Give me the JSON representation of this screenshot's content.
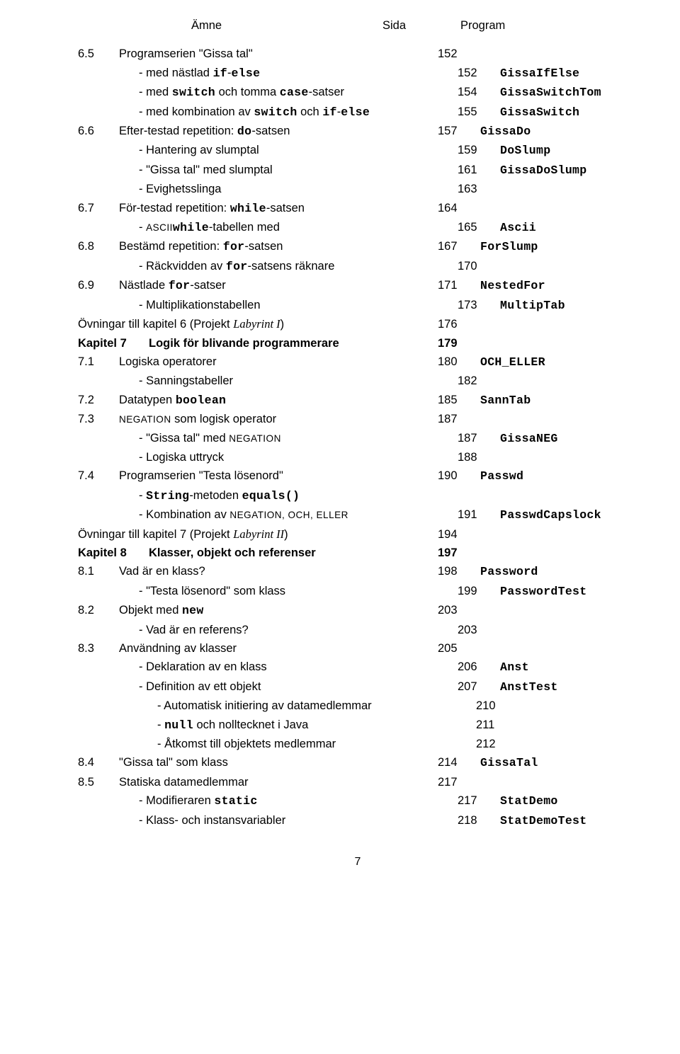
{
  "header": {
    "col1": "Ämne",
    "col2": "Sida",
    "col3": "Program"
  },
  "rows": [
    {
      "num": "6.5",
      "text": "Programserien \"Gissa tal\"",
      "page": "152",
      "prog": ""
    },
    {
      "num": "",
      "sub": 1,
      "pre": "- med nästlad ",
      "mono": "if",
      "mid": "-",
      "mono2": "else",
      "page": "152",
      "progMono": "GissaIfElse"
    },
    {
      "num": "",
      "sub": 1,
      "pre": "- med ",
      "mono": "switch",
      "mid": " och tomma ",
      "mono2": "case",
      "post": "-satser",
      "page": "154",
      "progMono": "GissaSwitchTom"
    },
    {
      "num": "",
      "sub": 1,
      "pre": "- med kombination av ",
      "mono": "switch",
      "mid": " och ",
      "mono2": "if",
      "mid2": "-",
      "mono3": "else",
      "page": "155",
      "progMono": "GissaSwitch"
    },
    {
      "num": "6.6",
      "pre": "Efter-testad repetition: ",
      "mono": "do",
      "post": "-satsen",
      "page": "157",
      "progMono": "GissaDo"
    },
    {
      "num": "",
      "sub": 1,
      "text": "- Hantering av slumptal",
      "page": "159",
      "progMono": "DoSlump"
    },
    {
      "num": "",
      "sub": 1,
      "text": "- \"Gissa tal\" med slumptal",
      "page": "161",
      "progMono": "GissaDoSlump"
    },
    {
      "num": "",
      "sub": 1,
      "text": "- Evighetsslinga",
      "page": "163",
      "prog": ""
    },
    {
      "num": "6.7",
      "pre": "För-testad repetition: ",
      "mono": "while",
      "post": "-satsen",
      "page": "164",
      "prog": ""
    },
    {
      "num": "",
      "sub": 1,
      "pre": "- ",
      "sc": "ASCII",
      "mid": "-tabellen med ",
      "mono": "while",
      "page": "165",
      "progMono": "Ascii"
    },
    {
      "num": "6.8",
      "pre": "Bestämd repetition: ",
      "mono": "for",
      "post": "-satsen",
      "page": "167",
      "progMono": "ForSlump"
    },
    {
      "num": "",
      "sub": 1,
      "pre": "- Räckvidden av ",
      "mono": "for",
      "post": "-satsens räknare",
      "page": "170",
      "prog": ""
    },
    {
      "num": "6.9",
      "pre": "Nästlade ",
      "mono": "for",
      "post": "-satser",
      "page": "171",
      "progMono": "NestedFor"
    },
    {
      "num": "",
      "sub": 1,
      "text": "- Multiplikationstabellen",
      "page": "173",
      "progMono": "MultipTab"
    },
    {
      "ov": 1,
      "pre": "Övningar till kapitel 6 (Projekt ",
      "serifItalic": "Labyrint I",
      "post": ")",
      "page": "176",
      "prog": ""
    },
    {
      "chap": 1,
      "num": "Kapitel 7",
      "text": "Logik för blivande programmerare",
      "page": "179",
      "prog": ""
    },
    {
      "num": "7.1",
      "text": "Logiska operatorer",
      "page": "180",
      "progMono": "OCH_ELLER"
    },
    {
      "num": "",
      "sub": 1,
      "text": "- Sanningstabeller",
      "page": "182",
      "prog": ""
    },
    {
      "num": "7.2",
      "pre": "Datatypen ",
      "mono": "boolean",
      "page": "185",
      "progMono": "SannTab"
    },
    {
      "num": "7.3",
      "sc": "NEGATION",
      "post": " som logisk operator",
      "page": "187",
      "prog": ""
    },
    {
      "num": "",
      "sub": 1,
      "pre": "- \"Gissa tal\" med ",
      "sc": "NEGATION",
      "page": "187",
      "progMono": "GissaNEG"
    },
    {
      "num": "",
      "sub": 1,
      "text": "- Logiska uttryck",
      "page": "188",
      "prog": ""
    },
    {
      "num": "7.4",
      "text": "Programserien \"Testa lösenord\"",
      "page": "190",
      "progMono": "Passwd"
    },
    {
      "num": "",
      "sub": 1,
      "pre": "- ",
      "mono": "String",
      "mid": "-metoden ",
      "mono2": "equals()",
      "page": "",
      "prog": ""
    },
    {
      "num": "",
      "sub": 1,
      "pre": "- Kombination av ",
      "sc": "NEGATION, OCH, ELLER",
      "page": "191",
      "progMono": "PasswdCapslock"
    },
    {
      "ov": 1,
      "pre": "Övningar till kapitel 7 (Projekt ",
      "serifItalic": "Labyrint II",
      "post": ")",
      "page": "194",
      "prog": ""
    },
    {
      "chap": 1,
      "num": "Kapitel 8",
      "text": "Klasser, objekt och referenser",
      "page": "197",
      "prog": ""
    },
    {
      "num": "8.1",
      "text": "Vad är en klass?",
      "page": "198",
      "progMono": "Password"
    },
    {
      "num": "",
      "sub": 1,
      "text": "- \"Testa lösenord\" som klass",
      "page": "199",
      "progMono": "PasswordTest"
    },
    {
      "num": "8.2",
      "pre": "Objekt med ",
      "mono": "new",
      "page": "203",
      "prog": ""
    },
    {
      "num": "",
      "sub": 1,
      "text": "- Vad är en referens?",
      "page": "203",
      "prog": ""
    },
    {
      "num": "8.3",
      "text": "Användning av klasser",
      "page": "205",
      "prog": ""
    },
    {
      "num": "",
      "sub": 1,
      "text": "- Deklaration av en klass",
      "page": "206",
      "progMono": "Anst"
    },
    {
      "num": "",
      "sub": 1,
      "text": "- Definition av ett objekt",
      "page": "207",
      "progMono": "AnstTest"
    },
    {
      "num": "",
      "sub": 2,
      "text": "- Automatisk initiering av datamedlemmar",
      "page": "210",
      "prog": ""
    },
    {
      "num": "",
      "sub": 2,
      "pre": "- ",
      "mono": "null",
      "post": " och nolltecknet i Java",
      "page": "211",
      "prog": ""
    },
    {
      "num": "",
      "sub": 2,
      "text": "- Åtkomst till objektets medlemmar",
      "page": "212",
      "prog": ""
    },
    {
      "num": "8.4",
      "text": "\"Gissa tal\" som klass",
      "page": "214",
      "progMono": "GissaTal"
    },
    {
      "num": "8.5",
      "text": "Statiska datamedlemmar",
      "page": "217",
      "prog": ""
    },
    {
      "num": "",
      "sub": 1,
      "pre": "- Modifieraren ",
      "mono": "static",
      "page": "217",
      "progMono": "StatDemo"
    },
    {
      "num": "",
      "sub": 1,
      "text": "- Klass- och instansvariabler",
      "page": "218",
      "progMono": "StatDemoTest"
    }
  ],
  "pageNumber": "7"
}
